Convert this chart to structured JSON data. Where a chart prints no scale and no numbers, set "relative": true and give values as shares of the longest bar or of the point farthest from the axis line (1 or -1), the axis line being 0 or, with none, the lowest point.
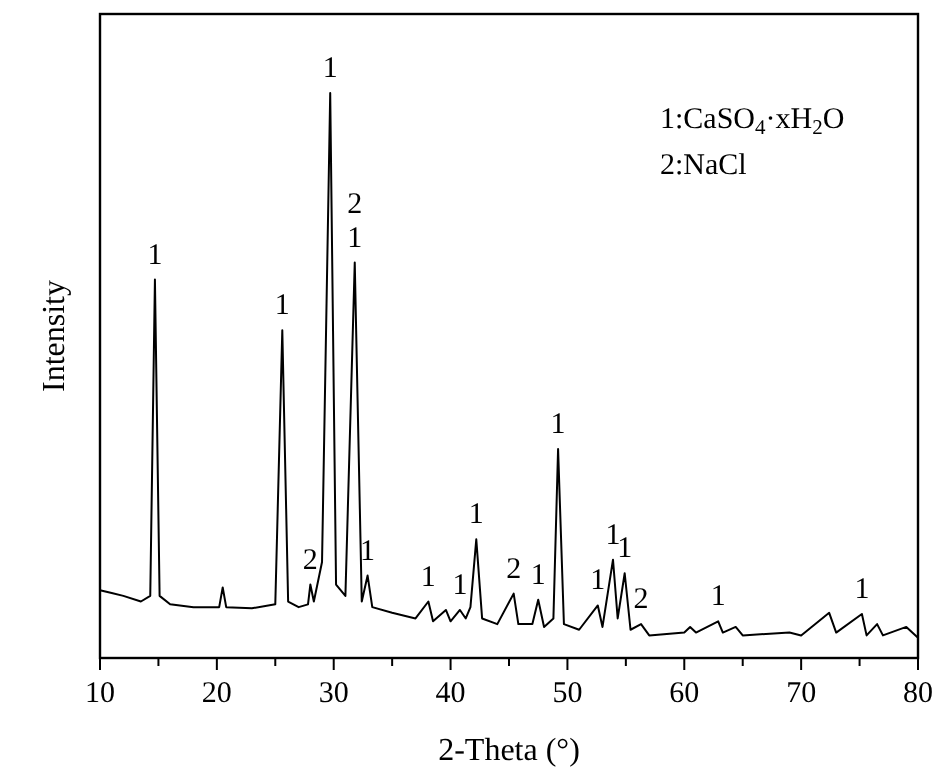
{
  "chart_data": {
    "type": "line",
    "relative": true,
    "xlabel": "2-Theta (°)",
    "ylabel": "Intensity",
    "xlim": [
      10,
      80
    ],
    "xticks": [
      10,
      {
        "value": 15,
        "label": null
      },
      20,
      {
        "value": 25,
        "label": null
      },
      30,
      {
        "value": 35,
        "label": null
      },
      40,
      {
        "value": 45,
        "label": null
      },
      50,
      {
        "value": 55,
        "label": null
      },
      60,
      {
        "value": 65,
        "label": null
      },
      70,
      {
        "value": 75,
        "label": null
      },
      80
    ],
    "marker": "none",
    "grid": false,
    "series": [
      {
        "color": "#000000",
        "x": [
          10,
          11,
          12,
          13.5,
          14.3,
          14.7,
          15.1,
          16,
          18,
          20.2,
          20.5,
          20.8,
          23,
          25,
          25.6,
          26.1,
          27,
          27.8,
          28.0,
          28.3,
          29.0,
          29.7,
          30.2,
          31.0,
          31.8,
          32.4,
          32.9,
          33.3,
          35,
          37,
          38.1,
          38.5,
          39.6,
          40.0,
          40.8,
          41.3,
          41.7,
          42.2,
          42.7,
          44,
          45.4,
          45.8,
          47,
          47.5,
          48,
          48.8,
          49.2,
          49.7,
          51,
          52.6,
          53,
          53.9,
          54.3,
          54.9,
          55.4,
          56.3,
          57,
          60,
          60.5,
          61,
          62.9,
          63.3,
          64.4,
          65,
          69,
          70,
          72.4,
          73,
          75.2,
          75.6,
          76.5,
          77,
          79,
          80
        ],
        "values": [
          0.12,
          0.115,
          0.11,
          0.1,
          0.11,
          0.67,
          0.11,
          0.095,
          0.09,
          0.09,
          0.125,
          0.09,
          0.088,
          0.095,
          0.58,
          0.1,
          0.09,
          0.095,
          0.13,
          0.1,
          0.17,
          1.0,
          0.13,
          0.11,
          0.7,
          0.1,
          0.146,
          0.09,
          0.08,
          0.07,
          0.1,
          0.065,
          0.085,
          0.065,
          0.085,
          0.07,
          0.09,
          0.21,
          0.07,
          0.06,
          0.114,
          0.06,
          0.06,
          0.103,
          0.055,
          0.07,
          0.37,
          0.06,
          0.05,
          0.093,
          0.055,
          0.174,
          0.07,
          0.15,
          0.05,
          0.06,
          0.04,
          0.045,
          0.055,
          0.045,
          0.065,
          0.045,
          0.055,
          0.04,
          0.045,
          0.04,
          0.08,
          0.045,
          0.078,
          0.04,
          0.06,
          0.04,
          0.055,
          0.036
        ]
      }
    ],
    "annotations": [
      {
        "text": "1",
        "x": 14.7,
        "y": 0.67
      },
      {
        "text": "1",
        "x": 25.6,
        "y": 0.58
      },
      {
        "text": "2",
        "x": 28.0,
        "y": 0.13
      },
      {
        "text": "1",
        "x": 29.7,
        "y": 1.0
      },
      {
        "text": "1",
        "x": 31.8,
        "y": 0.7
      },
      {
        "text": "2",
        "x": 31.8,
        "y": 0.7
      },
      {
        "text": "1",
        "x": 32.9,
        "y": 0.146
      },
      {
        "text": "1",
        "x": 38.1,
        "y": 0.1
      },
      {
        "text": "1",
        "x": 40.8,
        "y": 0.085
      },
      {
        "text": "1",
        "x": 42.2,
        "y": 0.21
      },
      {
        "text": "2",
        "x": 45.4,
        "y": 0.114
      },
      {
        "text": "1",
        "x": 47.5,
        "y": 0.103
      },
      {
        "text": "1",
        "x": 49.2,
        "y": 0.37
      },
      {
        "text": "1",
        "x": 52.6,
        "y": 0.093
      },
      {
        "text": "1",
        "x": 53.9,
        "y": 0.174
      },
      {
        "text": "1",
        "x": 54.9,
        "y": 0.15
      },
      {
        "text": "2",
        "x": 56.3,
        "y": 0.06
      },
      {
        "text": "1",
        "x": 62.9,
        "y": 0.065
      },
      {
        "text": "1",
        "x": 75.2,
        "y": 0.078
      },
      "1:CaSO$_{4}$·xH$_{2}$O",
      "2:NaCl"
    ]
  }
}
